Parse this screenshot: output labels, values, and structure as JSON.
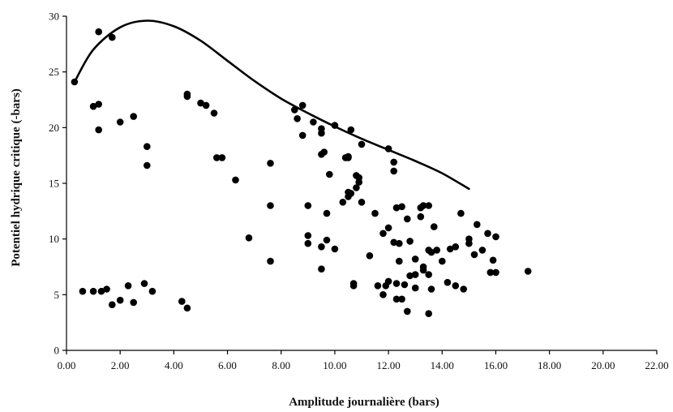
{
  "chart_data": {
    "type": "scatter",
    "title": "",
    "xlabel": "Amplitude journalière (bars)",
    "ylabel": "Potentiel hydrique critique (-bars)",
    "xlim": [
      0,
      22
    ],
    "ylim": [
      0,
      30
    ],
    "x_ticks": [
      "0.00",
      "2.00",
      "4.00",
      "6.00",
      "8.00",
      "10.00",
      "12.00",
      "14.00",
      "16.00",
      "18.00",
      "20.00",
      "22.00"
    ],
    "y_ticks": [
      "0",
      "5",
      "10",
      "15",
      "20",
      "25",
      "30"
    ],
    "grid": false,
    "legend": "none",
    "colors": {
      "points": "#000000",
      "curve": "#000000",
      "axis": "#000000"
    },
    "envelope_curve": {
      "x": [
        0.3,
        1.0,
        2.0,
        3.0,
        4.0,
        5.0,
        6.0,
        7.0,
        8.0,
        9.0,
        10.0,
        11.0,
        12.0,
        13.0,
        14.0,
        15.0
      ],
      "y": [
        24.1,
        27.0,
        29.0,
        29.6,
        29.1,
        27.8,
        26.0,
        24.2,
        22.6,
        21.3,
        20.1,
        19.0,
        18.0,
        17.0,
        15.9,
        14.5
      ]
    },
    "series": [
      {
        "x": [
          0.3,
          1.2,
          1.7,
          1.0,
          1.2,
          1.2,
          2.0,
          2.5,
          3.0,
          3.0,
          0.6,
          1.0,
          1.3,
          1.5,
          1.7,
          2.0,
          2.3,
          2.5,
          2.9,
          3.2,
          4.5,
          4.5,
          5.0,
          5.2,
          5.5,
          5.6,
          5.8,
          6.3,
          6.8,
          7.6,
          7.6,
          7.6,
          8.5,
          8.6,
          8.8,
          8.8,
          9.0,
          9.0,
          9.0,
          9.2,
          9.5,
          9.5,
          9.5,
          9.5,
          9.5,
          9.6,
          9.7,
          9.7,
          9.8,
          10.0,
          10.0,
          10.3,
          10.4,
          10.5,
          10.5,
          10.5,
          10.5,
          10.6,
          10.6,
          10.7,
          10.7,
          10.8,
          10.8,
          10.9,
          10.9,
          11.0,
          11.0,
          11.3,
          11.5,
          11.6,
          11.8,
          11.8,
          11.9,
          12.0,
          12.0,
          12.0,
          12.2,
          12.2,
          12.2,
          12.3,
          12.3,
          12.3,
          12.4,
          12.4,
          12.5,
          12.5,
          12.6,
          12.7,
          12.7,
          12.8,
          12.8,
          13.0,
          13.0,
          13.0,
          13.2,
          13.2,
          13.3,
          13.3,
          13.3,
          13.5,
          13.5,
          13.5,
          13.5,
          13.6,
          13.6,
          13.7,
          13.8,
          14.0,
          14.2,
          14.3,
          14.5,
          14.5,
          14.7,
          14.8,
          15.0,
          15.0,
          15.2,
          15.3,
          15.5,
          15.7,
          15.8,
          15.9,
          16.0,
          16.0,
          17.2,
          4.3,
          4.5
        ],
        "y": [
          24.1,
          28.6,
          28.1,
          21.9,
          22.1,
          19.8,
          20.5,
          21.0,
          18.3,
          16.6,
          5.3,
          5.3,
          5.3,
          5.5,
          4.1,
          4.5,
          5.8,
          4.3,
          6.0,
          5.3,
          23.0,
          22.8,
          22.2,
          22.0,
          21.3,
          17.3,
          17.3,
          15.3,
          10.1,
          16.8,
          13.0,
          8.0,
          21.6,
          20.8,
          22.0,
          19.3,
          13.0,
          10.3,
          9.6,
          20.5,
          19.9,
          19.5,
          17.6,
          9.3,
          7.3,
          17.8,
          12.3,
          9.9,
          15.8,
          20.2,
          9.1,
          13.3,
          17.3,
          17.4,
          17.3,
          14.2,
          13.8,
          14.1,
          19.8,
          6.0,
          5.8,
          15.7,
          14.6,
          15.1,
          15.5,
          18.5,
          13.3,
          8.5,
          12.3,
          5.8,
          10.5,
          5.0,
          5.8,
          18.1,
          11.0,
          6.2,
          16.9,
          16.1,
          9.7,
          12.8,
          6.0,
          4.6,
          8.0,
          9.6,
          12.9,
          4.6,
          5.9,
          11.8,
          3.5,
          6.7,
          9.8,
          5.6,
          6.8,
          8.2,
          12.8,
          12.0,
          7.5,
          7.2,
          13.0,
          13.0,
          9.0,
          6.8,
          3.3,
          8.8,
          5.5,
          11.1,
          9.0,
          8.0,
          6.1,
          9.1,
          9.3,
          5.8,
          12.3,
          5.5,
          10.0,
          9.6,
          8.6,
          11.3,
          9.0,
          10.5,
          7.0,
          8.1,
          7.0,
          10.2,
          7.1,
          4.4,
          3.8
        ]
      }
    ]
  }
}
